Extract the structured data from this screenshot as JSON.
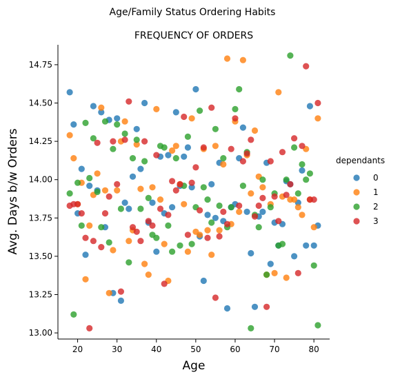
{
  "suptitle": "Age/Family Status Ordering Habits",
  "chart_data": {
    "type": "scatter",
    "title": "FREQUENCY OF ORDERS",
    "xlabel": "Age",
    "ylabel": "Avg. Days b/w Orders",
    "xlim": [
      15,
      84
    ],
    "ylim": [
      12.96,
      14.88
    ],
    "xticks": [
      20,
      30,
      40,
      50,
      60,
      70,
      80
    ],
    "yticks": [
      13.0,
      13.25,
      13.5,
      13.75,
      14.0,
      14.25,
      14.5,
      14.75
    ],
    "ytick_labels": [
      "13.00",
      "13.25",
      "13.50",
      "13.75",
      "14.00",
      "14.25",
      "14.50",
      "14.75"
    ],
    "grid": false,
    "legend_title": "dependants",
    "legend_position": "right",
    "series": [
      {
        "name": "0",
        "color": "#1f77b4",
        "points": [
          [
            18,
            14.57
          ],
          [
            19,
            14.36
          ],
          [
            20,
            13.78
          ],
          [
            21,
            14.07
          ],
          [
            22,
            13.51
          ],
          [
            23,
            13.96
          ],
          [
            24,
            14.48
          ],
          [
            25,
            13.93
          ],
          [
            26,
            14.44
          ],
          [
            27,
            13.69
          ],
          [
            28,
            14.39
          ],
          [
            29,
            13.26
          ],
          [
            30,
            14.4
          ],
          [
            31,
            13.21
          ],
          [
            32,
            13.85
          ],
          [
            33,
            13.81
          ],
          [
            34,
            14.02
          ],
          [
            35,
            14.33
          ],
          [
            36,
            14.07
          ],
          [
            37,
            14.5
          ],
          [
            38,
            13.72
          ],
          [
            39,
            13.85
          ],
          [
            40,
            13.53
          ],
          [
            41,
            14.15
          ],
          [
            42,
            13.78
          ],
          [
            43,
            14.16
          ],
          [
            44,
            13.82
          ],
          [
            45,
            14.44
          ],
          [
            46,
            13.96
          ],
          [
            47,
            14.15
          ],
          [
            48,
            14.21
          ],
          [
            49,
            13.95
          ],
          [
            50,
            14.59
          ],
          [
            51,
            13.63
          ],
          [
            52,
            13.34
          ],
          [
            53,
            13.77
          ],
          [
            54,
            13.97
          ],
          [
            55,
            13.75
          ],
          [
            56,
            14.11
          ],
          [
            57,
            13.73
          ],
          [
            58,
            13.16
          ],
          [
            59,
            13.82
          ],
          [
            60,
            13.84
          ],
          [
            61,
            14.14
          ],
          [
            62,
            14.34
          ],
          [
            63,
            13.79
          ],
          [
            64,
            13.52
          ],
          [
            65,
            13.17
          ],
          [
            66,
            13.76
          ],
          [
            67,
            13.79
          ],
          [
            68,
            14.11
          ],
          [
            69,
            13.45
          ],
          [
            70,
            13.72
          ],
          [
            71,
            13.57
          ],
          [
            72,
            13.71
          ],
          [
            73,
            13.99
          ],
          [
            74,
            13.97
          ],
          [
            75,
            13.5
          ],
          [
            76,
            13.85
          ],
          [
            77,
            14.06
          ],
          [
            78,
            13.57
          ],
          [
            79,
            14.48
          ],
          [
            80,
            13.57
          ],
          [
            81,
            13.7
          ]
        ]
      },
      {
        "name": "1",
        "color": "#ff7f0e",
        "points": [
          [
            18,
            14.29
          ],
          [
            19,
            14.14
          ],
          [
            20,
            13.84
          ],
          [
            21,
            13.98
          ],
          [
            22,
            13.35
          ],
          [
            23,
            13.7
          ],
          [
            24,
            13.9
          ],
          [
            25,
            14.04
          ],
          [
            26,
            14.47
          ],
          [
            27,
            13.93
          ],
          [
            28,
            13.26
          ],
          [
            29,
            13.54
          ],
          [
            30,
            13.93
          ],
          [
            31,
            14.25
          ],
          [
            32,
            14.38
          ],
          [
            33,
            13.6
          ],
          [
            34,
            13.67
          ],
          [
            35,
            14.23
          ],
          [
            36,
            13.94
          ],
          [
            37,
            13.45
          ],
          [
            38,
            13.38
          ],
          [
            39,
            13.95
          ],
          [
            40,
            14.46
          ],
          [
            41,
            13.87
          ],
          [
            42,
            13.58
          ],
          [
            43,
            13.34
          ],
          [
            44,
            14.19
          ],
          [
            45,
            14.22
          ],
          [
            46,
            13.97
          ],
          [
            47,
            13.84
          ],
          [
            48,
            13.53
          ],
          [
            49,
            14.4
          ],
          [
            50,
            13.66
          ],
          [
            51,
            13.64
          ],
          [
            52,
            14.2
          ],
          [
            53,
            13.67
          ],
          [
            54,
            13.51
          ],
          [
            55,
            14.22
          ],
          [
            56,
            13.67
          ],
          [
            57,
            14.1
          ],
          [
            58,
            14.79
          ],
          [
            59,
            13.71
          ],
          [
            60,
            14.38
          ],
          [
            61,
            13.79
          ],
          [
            62,
            14.78
          ],
          [
            63,
            14.16
          ],
          [
            64,
            13.91
          ],
          [
            65,
            14.32
          ],
          [
            66,
            14.02
          ],
          [
            67,
            13.95
          ],
          [
            68,
            13.38
          ],
          [
            69,
            13.84
          ],
          [
            70,
            13.39
          ],
          [
            71,
            14.57
          ],
          [
            72,
            13.89
          ],
          [
            73,
            13.36
          ],
          [
            74,
            13.87
          ],
          [
            75,
            13.87
          ],
          [
            76,
            13.82
          ],
          [
            77,
            13.77
          ],
          [
            78,
            14.2
          ],
          [
            79,
            13.87
          ],
          [
            80,
            13.69
          ],
          [
            81,
            14.4
          ]
        ]
      },
      {
        "name": "2",
        "color": "#2ca02c",
        "points": [
          [
            18,
            13.91
          ],
          [
            19,
            13.12
          ],
          [
            20,
            13.98
          ],
          [
            21,
            13.7
          ],
          [
            22,
            14.37
          ],
          [
            23,
            14.01
          ],
          [
            24,
            14.27
          ],
          [
            25,
            13.92
          ],
          [
            26,
            13.69
          ],
          [
            27,
            14.38
          ],
          [
            28,
            13.59
          ],
          [
            29,
            14.2
          ],
          [
            30,
            14.36
          ],
          [
            31,
            13.81
          ],
          [
            32,
            14.3
          ],
          [
            33,
            13.46
          ],
          [
            34,
            14.14
          ],
          [
            35,
            14.26
          ],
          [
            36,
            13.81
          ],
          [
            37,
            14.12
          ],
          [
            38,
            13.88
          ],
          [
            39,
            13.64
          ],
          [
            40,
            13.62
          ],
          [
            41,
            14.22
          ],
          [
            42,
            14.21
          ],
          [
            43,
            13.7
          ],
          [
            44,
            13.53
          ],
          [
            45,
            14.14
          ],
          [
            46,
            13.57
          ],
          [
            47,
            13.96
          ],
          [
            48,
            14.28
          ],
          [
            49,
            13.58
          ],
          [
            50,
            13.82
          ],
          [
            51,
            14.45
          ],
          [
            52,
            13.95
          ],
          [
            53,
            13.87
          ],
          [
            54,
            13.72
          ],
          [
            55,
            14.33
          ],
          [
            56,
            13.83
          ],
          [
            57,
            14.14
          ],
          [
            58,
            13.69
          ],
          [
            59,
            13.82
          ],
          [
            60,
            14.46
          ],
          [
            61,
            14.59
          ],
          [
            62,
            13.96
          ],
          [
            63,
            14.18
          ],
          [
            64,
            13.03
          ],
          [
            65,
            13.77
          ],
          [
            66,
            13.69
          ],
          [
            67,
            14.0
          ],
          [
            68,
            13.38
          ],
          [
            69,
            13.82
          ],
          [
            70,
            13.91
          ],
          [
            71,
            13.57
          ],
          [
            72,
            13.58
          ],
          [
            73,
            14.0
          ],
          [
            74,
            14.81
          ],
          [
            75,
            14.21
          ],
          [
            76,
            13.91
          ],
          [
            77,
            14.1
          ],
          [
            78,
            14.0
          ],
          [
            79,
            14.04
          ],
          [
            80,
            13.44
          ],
          [
            81,
            13.05
          ]
        ]
      },
      {
        "name": "3",
        "color": "#d62728",
        "points": [
          [
            18,
            13.83
          ],
          [
            19,
            13.84
          ],
          [
            20,
            13.84
          ],
          [
            21,
            13.78
          ],
          [
            22,
            13.62
          ],
          [
            23,
            13.03
          ],
          [
            24,
            13.6
          ],
          [
            25,
            14.24
          ],
          [
            26,
            13.56
          ],
          [
            27,
            13.78
          ],
          [
            28,
            13.89
          ],
          [
            29,
            14.25
          ],
          [
            30,
            13.97
          ],
          [
            31,
            13.27
          ],
          [
            32,
            14.26
          ],
          [
            33,
            14.51
          ],
          [
            34,
            13.69
          ],
          [
            35,
            13.66
          ],
          [
            36,
            13.6
          ],
          [
            37,
            14.25
          ],
          [
            38,
            13.73
          ],
          [
            39,
            13.7
          ],
          [
            40,
            14.16
          ],
          [
            41,
            13.81
          ],
          [
            42,
            13.32
          ],
          [
            43,
            13.77
          ],
          [
            44,
            13.99
          ],
          [
            45,
            13.93
          ],
          [
            46,
            13.97
          ],
          [
            47,
            14.41
          ],
          [
            48,
            13.64
          ],
          [
            49,
            13.98
          ],
          [
            50,
            14.08
          ],
          [
            51,
            13.8
          ],
          [
            52,
            14.21
          ],
          [
            53,
            13.62
          ],
          [
            54,
            14.47
          ],
          [
            55,
            13.23
          ],
          [
            56,
            13.63
          ],
          [
            57,
            13.79
          ],
          [
            58,
            13.71
          ],
          [
            59,
            14.2
          ],
          [
            60,
            14.4
          ],
          [
            61,
            13.83
          ],
          [
            62,
            14.12
          ],
          [
            63,
            14.17
          ],
          [
            64,
            14.26
          ],
          [
            65,
            13.76
          ],
          [
            66,
            13.83
          ],
          [
            67,
            13.88
          ],
          [
            68,
            13.17
          ],
          [
            69,
            14.12
          ],
          [
            70,
            13.89
          ],
          [
            71,
            13.73
          ],
          [
            72,
            14.18
          ],
          [
            73,
            13.9
          ],
          [
            74,
            13.97
          ],
          [
            75,
            14.27
          ],
          [
            76,
            13.39
          ],
          [
            77,
            14.22
          ],
          [
            78,
            14.74
          ],
          [
            79,
            13.87
          ],
          [
            80,
            13.87
          ],
          [
            81,
            14.5
          ]
        ]
      }
    ]
  }
}
